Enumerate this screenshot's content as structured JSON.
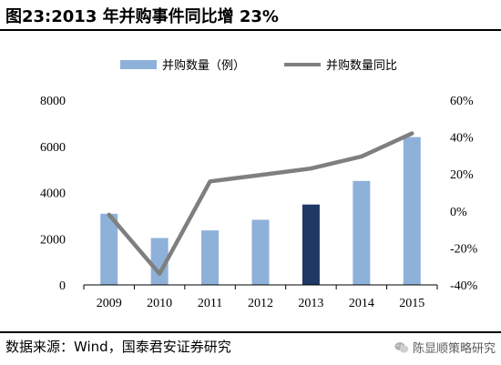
{
  "figure_title": "图23:2013 年并购事件同比增 23%",
  "source": "数据来源：Wind，国泰君安证券研究",
  "watermark": "陈显顺策略研究",
  "chart_data": {
    "type": "bar",
    "categories": [
      "2009",
      "2010",
      "2011",
      "2012",
      "2013",
      "2014",
      "2015"
    ],
    "series": [
      {
        "name": "并购数量（例）",
        "type": "bar",
        "axis": "left",
        "values": [
          3080,
          2030,
          2360,
          2820,
          3480,
          4500,
          6400
        ],
        "color": "#8EB1DA",
        "highlight_index": 4,
        "highlight_color": "#1F3864"
      },
      {
        "name": "并购数量同比",
        "type": "line",
        "axis": "right",
        "values": [
          -2,
          -34,
          16,
          19.5,
          23,
          29.5,
          42
        ],
        "color": "#7F7F7F"
      }
    ],
    "y_left": {
      "min": 0,
      "max": 8000,
      "ticks": [
        "0",
        "2000",
        "4000",
        "6000",
        "8000"
      ]
    },
    "y_right": {
      "min": -40,
      "max": 60,
      "ticks": [
        "-40%",
        "-20%",
        "0%",
        "20%",
        "40%",
        "60%"
      ]
    },
    "legend_position": "top",
    "grid": false
  }
}
